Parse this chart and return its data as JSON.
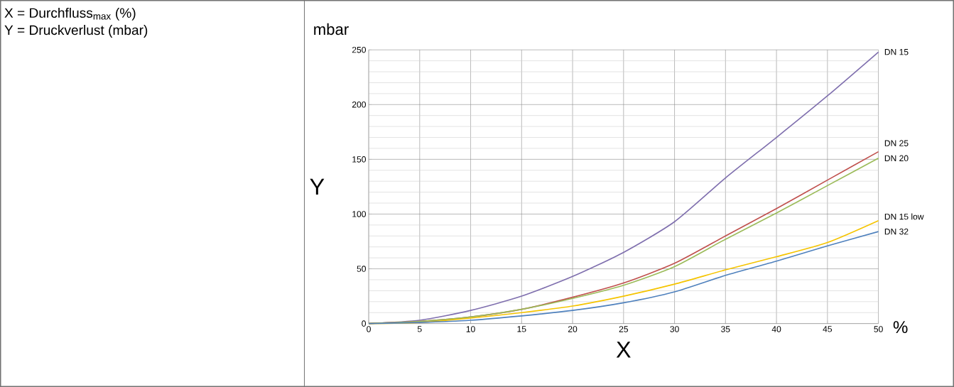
{
  "chart_data": {
    "type": "line",
    "xlabel": "X",
    "ylabel": "Y",
    "annotations": [
      "X = Durchfluss$_{max}$ (%)",
      "Y = Druckverlust (mbar)",
      "mbar",
      "%"
    ],
    "x": [
      0,
      5,
      10,
      15,
      20,
      25,
      30,
      35,
      40,
      45,
      50
    ],
    "series": [
      {
        "name": "DN 15",
        "color": "#7f6fae",
        "values": [
          0,
          3,
          12,
          25,
          43,
          65,
          93,
          133,
          170,
          208,
          248
        ]
      },
      {
        "name": "DN 25",
        "color": "#c0504d",
        "values": [
          0,
          2,
          6,
          13,
          24,
          37,
          55,
          80,
          105,
          131,
          157
        ]
      },
      {
        "name": "DN 20",
        "color": "#9bbb59",
        "values": [
          0,
          2,
          6,
          13,
          23,
          35,
          52,
          77,
          101,
          126,
          151
        ]
      },
      {
        "name": "DN 15 low",
        "color": "#f5c400",
        "values": [
          0,
          1,
          5,
          10,
          16,
          25,
          36,
          49,
          61,
          74,
          94
        ]
      },
      {
        "name": "DN 32",
        "color": "#4f81bd",
        "values": [
          0,
          1,
          3,
          7,
          12,
          19,
          29,
          44,
          57,
          71,
          84
        ]
      }
    ],
    "xlim": [
      0,
      50
    ],
    "ylim": [
      0,
      250
    ],
    "xticks": [
      0,
      5,
      10,
      15,
      20,
      25,
      30,
      35,
      40,
      45,
      50
    ],
    "yticks": [
      0,
      {
        "value": 10,
        "label": null
      },
      {
        "value": 20,
        "label": null
      },
      {
        "value": 30,
        "label": null
      },
      {
        "value": 40,
        "label": null
      },
      50,
      {
        "value": 60,
        "label": null
      },
      {
        "value": 70,
        "label": null
      },
      {
        "value": 80,
        "label": null
      },
      {
        "value": 90,
        "label": null
      },
      100,
      {
        "value": 110,
        "label": null
      },
      {
        "value": 120,
        "label": null
      },
      {
        "value": 130,
        "label": null
      },
      {
        "value": 140,
        "label": null
      },
      150,
      {
        "value": 160,
        "label": null
      },
      {
        "value": 170,
        "label": null
      },
      {
        "value": 180,
        "label": null
      },
      {
        "value": 190,
        "label": null
      },
      200,
      {
        "value": 210,
        "label": null
      },
      {
        "value": 220,
        "label": null
      },
      {
        "value": 230,
        "label": null
      },
      {
        "value": 240,
        "label": null
      },
      250
    ],
    "grid": true,
    "marker": "none",
    "line_style": "solid"
  }
}
